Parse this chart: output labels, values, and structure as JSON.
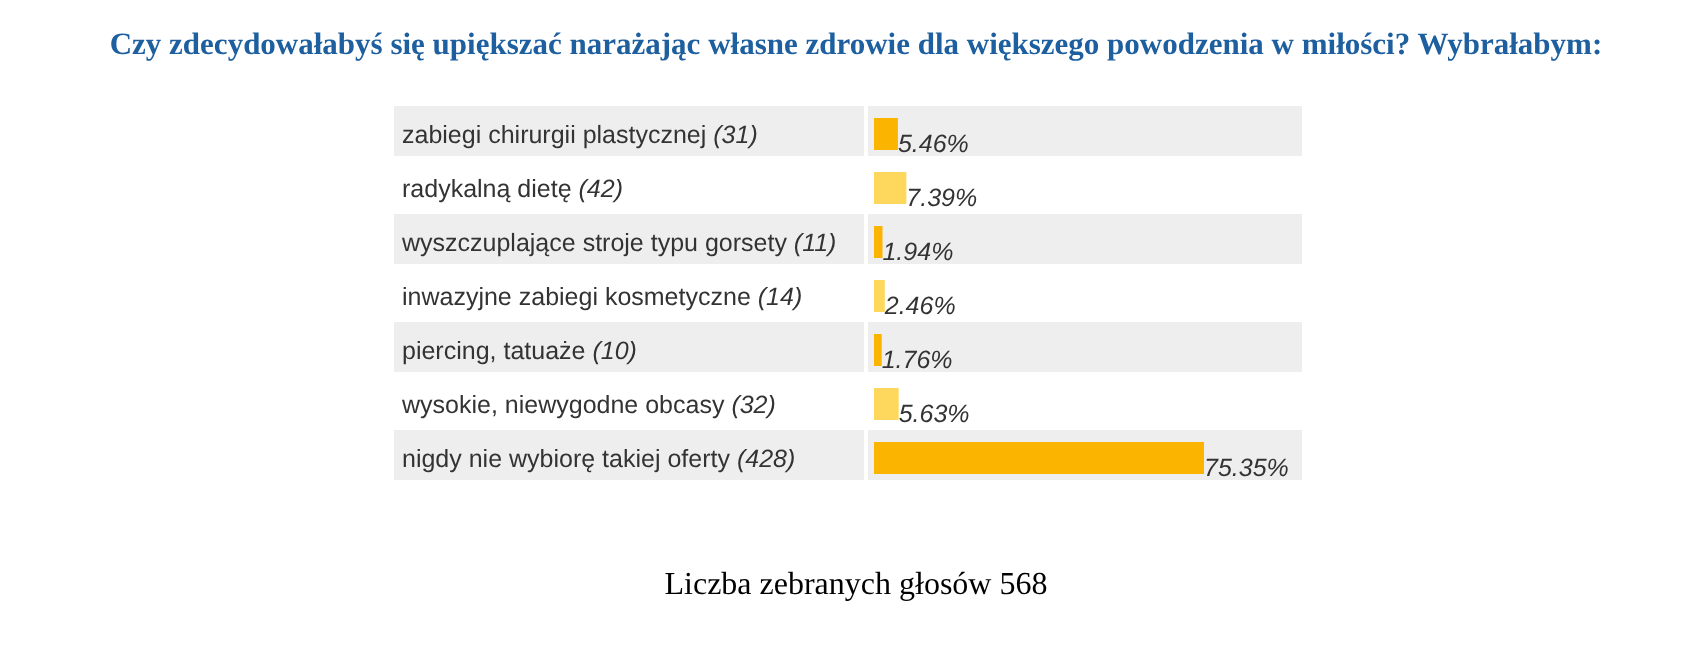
{
  "chart_data": {
    "type": "bar",
    "orientation": "horizontal",
    "title": "Czy zdecydowałabyś się upiększać narażając własne zdrowie dla większego powodzenia w miłości? Wybrałabym:",
    "categories": [
      "zabiegi chirurgii plastycznej (31)",
      "radykalną dietę (42)",
      "wyszczuplające stroje typu gorsety (11)",
      "inwazyjne zabiegi kosmetyczne (14)",
      "piercing, tatuaże (10)",
      "wysokie, niewygodne obcasy (32)",
      "nigdy nie wybiorę takiej oferty (428)"
    ],
    "values": [
      5.46,
      7.39,
      1.94,
      2.46,
      1.76,
      5.63,
      75.35
    ],
    "value_labels": [
      "5.46%",
      "7.39%",
      "1.94%",
      "2.46%",
      "1.76%",
      "5.63%",
      "75.35%"
    ],
    "colors": [
      "#fbb400",
      "#fdd85c",
      "#fbb400",
      "#fdd85c",
      "#fbb400",
      "#fdd85c",
      "#fbb400"
    ],
    "tick_labels": "y",
    "annotations": [
      "Liczba zebranych głosów 568"
    ]
  }
}
